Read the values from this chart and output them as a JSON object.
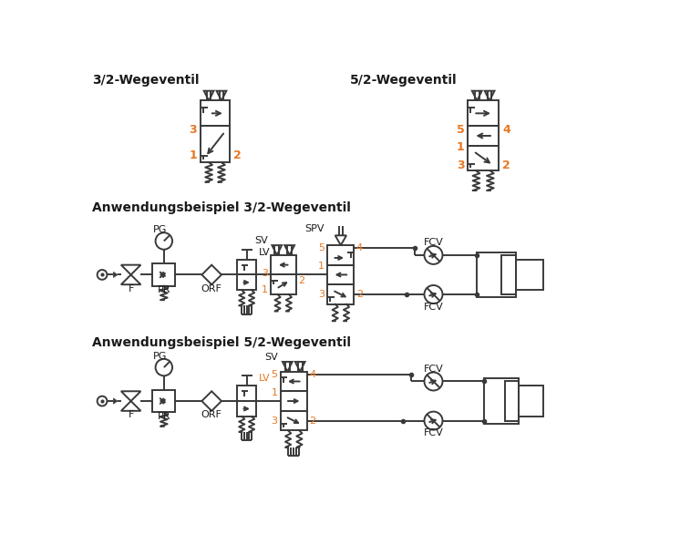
{
  "title_32": "3/2-Wegeventil",
  "title_52": "5/2-Wegeventil",
  "section1": "Anwendungsbeispiel 3/2-Wegeventil",
  "section2": "Anwendungsbeispiel 5/2-Wegeventil",
  "text_color_black": "#1a1a1a",
  "line_color": "#3a3a3a",
  "bg_color": "#ffffff",
  "orange": "#E87722",
  "lw": 1.4
}
